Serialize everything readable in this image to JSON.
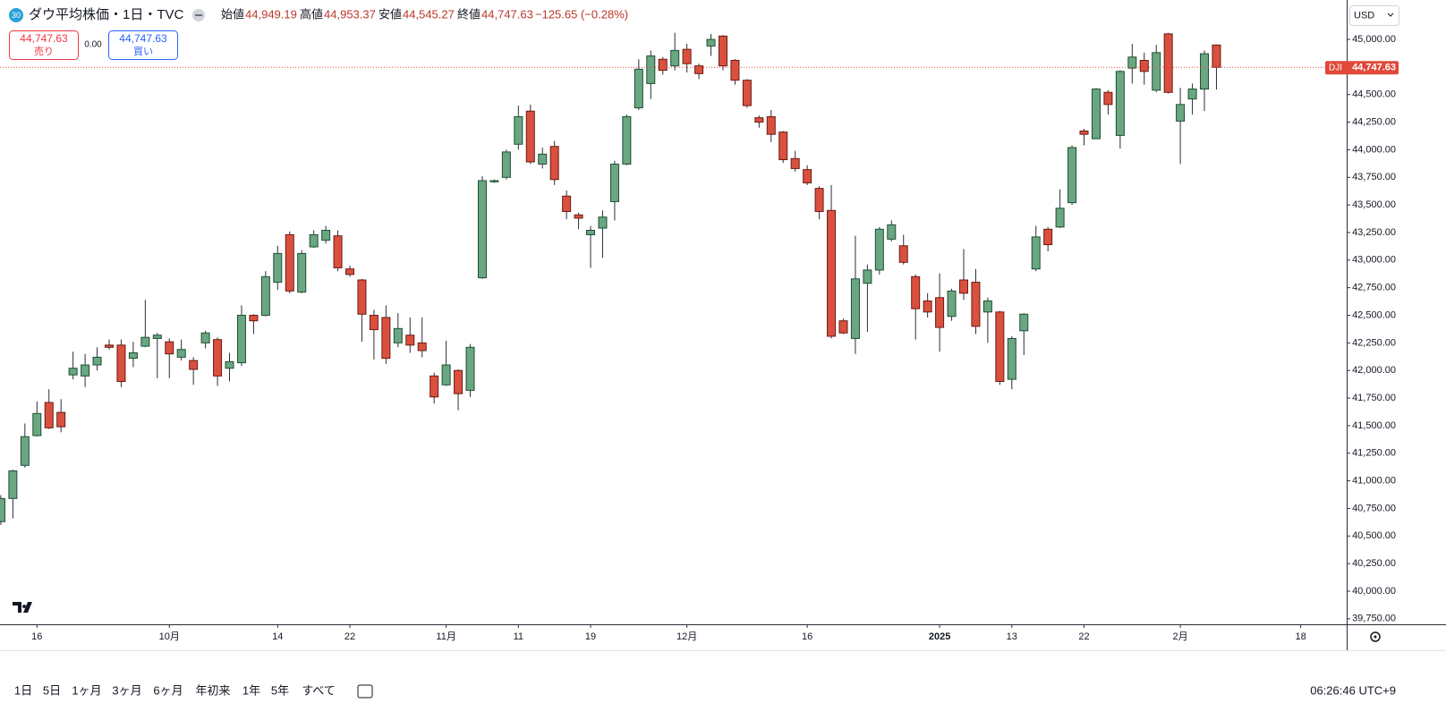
{
  "legend": {
    "badge": "30",
    "title": "ダウ平均株価・1日・TVC",
    "items": [
      {
        "label": "始値",
        "value": "44,949.19"
      },
      {
        "label": "高値",
        "value": "44,953.37"
      },
      {
        "label": "安値",
        "value": "44,545.27"
      },
      {
        "label": "終値",
        "value": "44,747.63"
      }
    ],
    "change": "−125.65 (−0.28%)"
  },
  "trade": {
    "sell_price": "44,747.63",
    "sell_label": "売り",
    "spread": "0.00",
    "buy_price": "44,747.63",
    "buy_label": "買い"
  },
  "currency": "USD",
  "toolbar": {
    "ranges": [
      "1日",
      "5日",
      "1ヶ月",
      "3ヶ月",
      "6ヶ月",
      "年初来",
      "1年",
      "5年",
      "すべて"
    ],
    "time": "06:26:46 UTC+9"
  },
  "chart_data": {
    "type": "candlestick",
    "up_color": "#6aa682",
    "up_border": "#1e4f33",
    "down_color": "#d9503f",
    "down_border": "#6b1b13",
    "wick_color": "#2a2e39",
    "open": [
      40630,
      40840,
      41140,
      41410,
      41710,
      41620,
      41960,
      41950,
      42050,
      42230,
      42230,
      42110,
      42220,
      42290,
      42260,
      42120,
      42090,
      42250,
      42280,
      42020,
      42070,
      42500,
      42500,
      42800,
      43230,
      42710,
      43120,
      43180,
      43220,
      42920,
      42820,
      42500,
      42480,
      42250,
      42320,
      42250,
      41950,
      41870,
      42000,
      41820,
      42840,
      43710,
      43750,
      44050,
      44350,
      43870,
      44030,
      43580,
      43410,
      43230,
      43290,
      43530,
      43870,
      44380,
      44600,
      44820,
      44760,
      44910,
      44760,
      44940,
      45030,
      44810,
      44630,
      44290,
      44300,
      44160,
      43920,
      43820,
      43650,
      43450,
      42450,
      42290,
      42790,
      42910,
      43190,
      43130,
      42850,
      42630,
      42660,
      42490,
      42820,
      42800,
      42530,
      42530,
      41920,
      42360,
      42920,
      43280,
      43300,
      43520,
      44170,
      44100,
      44520,
      44130,
      44740,
      44810,
      44540,
      45050,
      44260,
      44460,
      44550,
      44949.19
    ],
    "high": [
      40870,
      41100,
      41520,
      41720,
      41830,
      41740,
      42170,
      42150,
      42210,
      42280,
      42280,
      42260,
      42640,
      42340,
      42290,
      42280,
      42120,
      42360,
      42300,
      42160,
      42590,
      42510,
      42900,
      43130,
      43260,
      43090,
      43270,
      43310,
      43270,
      42950,
      42830,
      42550,
      42590,
      42520,
      42480,
      42480,
      41980,
      42270,
      42010,
      42240,
      43760,
      43730,
      44000,
      44400,
      44410,
      44020,
      44080,
      43630,
      43430,
      43310,
      43450,
      43900,
      44320,
      44820,
      44900,
      44840,
      45060,
      44960,
      44780,
      45050,
      45040,
      44820,
      44640,
      44310,
      44360,
      44170,
      43990,
      43860,
      43670,
      43680,
      42470,
      43220,
      42960,
      43300,
      43360,
      43230,
      42870,
      42700,
      42880,
      42740,
      43100,
      42920,
      42660,
      42540,
      42310,
      42520,
      43310,
      43300,
      43640,
      44040,
      44190,
      44560,
      44540,
      44720,
      44960,
      44880,
      44950,
      45060,
      44560,
      44600,
      44900,
      44953.37
    ],
    "low": [
      40600,
      40660,
      41120,
      41400,
      41470,
      41440,
      41920,
      41850,
      42000,
      42190,
      41850,
      42030,
      42210,
      41930,
      41930,
      42090,
      41870,
      42200,
      41860,
      41900,
      42040,
      42330,
      42490,
      42730,
      42700,
      42700,
      43110,
      43150,
      42900,
      42850,
      42260,
      42100,
      42060,
      42210,
      42160,
      42120,
      41700,
      41860,
      41640,
      41760,
      42830,
      43700,
      43730,
      44000,
      43870,
      43830,
      43680,
      43370,
      43280,
      42930,
      43020,
      43360,
      43860,
      44360,
      44460,
      44680,
      44720,
      44700,
      44640,
      44850,
      44720,
      44590,
      44380,
      44200,
      44070,
      43880,
      43800,
      43680,
      43370,
      42290,
      42330,
      42150,
      42350,
      42870,
      43170,
      42960,
      42280,
      42480,
      42170,
      42450,
      42640,
      42330,
      42250,
      41870,
      41830,
      42140,
      42900,
      43080,
      43290,
      43500,
      44040,
      44100,
      44320,
      44010,
      44600,
      44590,
      44520,
      44510,
      43870,
      44320,
      44350,
      44545.27
    ],
    "close": [
      40840,
      41090,
      41400,
      41610,
      41480,
      41490,
      42020,
      42050,
      42120,
      42210,
      41900,
      42160,
      42300,
      42320,
      42150,
      42190,
      42010,
      42340,
      41950,
      42080,
      42500,
      42450,
      42850,
      43060,
      42720,
      43060,
      43230,
      43270,
      42930,
      42870,
      42510,
      42370,
      42110,
      42380,
      42230,
      42180,
      41760,
      42050,
      41790,
      42210,
      43720,
      43720,
      43980,
      44300,
      43890,
      43960,
      43730,
      43440,
      43380,
      43270,
      43390,
      43870,
      44300,
      44730,
      44850,
      44720,
      44900,
      44780,
      44690,
      45000,
      44760,
      44630,
      44400,
      44250,
      44140,
      43910,
      43830,
      43700,
      43440,
      42310,
      42340,
      42830,
      42910,
      43280,
      43320,
      42980,
      42560,
      42530,
      42390,
      42720,
      42700,
      42400,
      42630,
      41900,
      42290,
      42510,
      43210,
      43140,
      43470,
      44020,
      44140,
      44550,
      44410,
      44710,
      44840,
      44710,
      44880,
      44520,
      44410,
      44550,
      44870,
      44747.63
    ],
    "last_price": {
      "label": "DJI",
      "value": 44747.63,
      "value_label": "44,747.63",
      "color": "#e0483a"
    },
    "xlim": [
      -0.07,
      111.82
    ],
    "xticks": [
      {
        "value": 3,
        "label": "16"
      },
      {
        "value": 14,
        "label": "10月"
      },
      {
        "value": 23,
        "label": "14"
      },
      {
        "value": 29,
        "label": "22"
      },
      {
        "value": 37,
        "label": "11月"
      },
      {
        "value": 43,
        "label": "11"
      },
      {
        "value": 49,
        "label": "19"
      },
      {
        "value": 57,
        "label": "12月"
      },
      {
        "value": 67,
        "label": "16"
      },
      {
        "value": 78,
        "label": "2025"
      },
      {
        "value": 84,
        "label": "13"
      },
      {
        "value": 90,
        "label": "22"
      },
      {
        "value": 98,
        "label": "2月"
      },
      {
        "value": 108,
        "label": "18"
      }
    ],
    "ylim": [
      39700,
      45357
    ],
    "yticks": [
      {
        "value": 39750,
        "label": "39,750.00"
      },
      {
        "value": 40000,
        "label": "40,000.00"
      },
      {
        "value": 40250,
        "label": "40,250.00"
      },
      {
        "value": 40500,
        "label": "40,500.00"
      },
      {
        "value": 40750,
        "label": "40,750.00"
      },
      {
        "value": 41000,
        "label": "41,000.00"
      },
      {
        "value": 41250,
        "label": "41,250.00"
      },
      {
        "value": 41500,
        "label": "41,500.00"
      },
      {
        "value": 41750,
        "label": "41,750.00"
      },
      {
        "value": 42000,
        "label": "42,000.00"
      },
      {
        "value": 42250,
        "label": "42,250.00"
      },
      {
        "value": 42500,
        "label": "42,500.00"
      },
      {
        "value": 42750,
        "label": "42,750.00"
      },
      {
        "value": 43000,
        "label": "43,000.00"
      },
      {
        "value": 43250,
        "label": "43,250.00"
      },
      {
        "value": 43500,
        "label": "43,500.00"
      },
      {
        "value": 43750,
        "label": "43,750.00"
      },
      {
        "value": 44000,
        "label": "44,000.00"
      },
      {
        "value": 44250,
        "label": "44,250.00"
      },
      {
        "value": 44500,
        "label": "44,500.00"
      },
      {
        "value": 44750,
        "label": "44,750.00"
      },
      {
        "value": 45000,
        "label": "45,000.00"
      }
    ],
    "grid": false
  }
}
